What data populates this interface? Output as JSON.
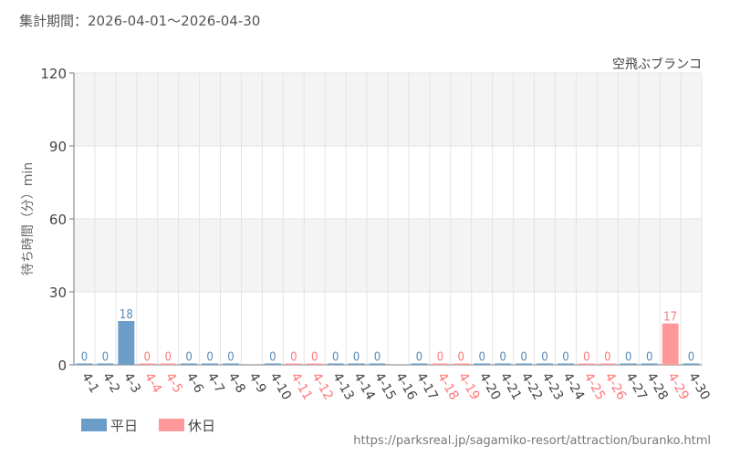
{
  "header": {
    "period_label": "集計期間：2026-04-01～2026-04-30"
  },
  "footer": {
    "source_url": "https://parksreal.jp/sagamiko-resort/attraction/buranko.html"
  },
  "colors": {
    "weekday": "#6a9ec8",
    "holiday": "#ff9999",
    "weekday_text": "#5a8ab5",
    "holiday_text": "#ff7777",
    "grid": "#e4e4e4",
    "band": "#f4f4f4"
  },
  "chart_data": {
    "type": "bar",
    "title": "空飛ぶブランコ",
    "ylabel": "待ち時間（分）min",
    "xlabel": "",
    "ylim": [
      0,
      120
    ],
    "yticks": [
      0,
      30,
      60,
      90,
      120
    ],
    "grid": true,
    "legend_position": "bottom-left",
    "legend": [
      {
        "label": "平日",
        "color": "#6a9ec8"
      },
      {
        "label": "休日",
        "color": "#ff9999"
      }
    ],
    "categories": [
      "4-1",
      "4-2",
      "4-3",
      "4-4",
      "4-5",
      "4-6",
      "4-7",
      "4-8",
      "4-9",
      "4-10",
      "4-11",
      "4-12",
      "4-13",
      "4-14",
      "4-15",
      "4-16",
      "4-17",
      "4-18",
      "4-19",
      "4-20",
      "4-21",
      "4-22",
      "4-23",
      "4-24",
      "4-25",
      "4-26",
      "4-27",
      "4-28",
      "4-29",
      "4-30"
    ],
    "day_type": [
      "weekday",
      "weekday",
      "weekday",
      "holiday",
      "holiday",
      "weekday",
      "weekday",
      "weekday",
      "weekday",
      "weekday",
      "holiday",
      "holiday",
      "weekday",
      "weekday",
      "weekday",
      "weekday",
      "weekday",
      "holiday",
      "holiday",
      "weekday",
      "weekday",
      "weekday",
      "weekday",
      "weekday",
      "holiday",
      "holiday",
      "weekday",
      "weekday",
      "holiday",
      "weekday"
    ],
    "values": [
      0,
      0,
      18,
      0,
      0,
      0,
      0,
      0,
      null,
      0,
      0,
      0,
      0,
      0,
      0,
      null,
      0,
      0,
      0,
      0,
      0,
      0,
      0,
      0,
      0,
      0,
      0,
      0,
      17,
      0
    ]
  }
}
